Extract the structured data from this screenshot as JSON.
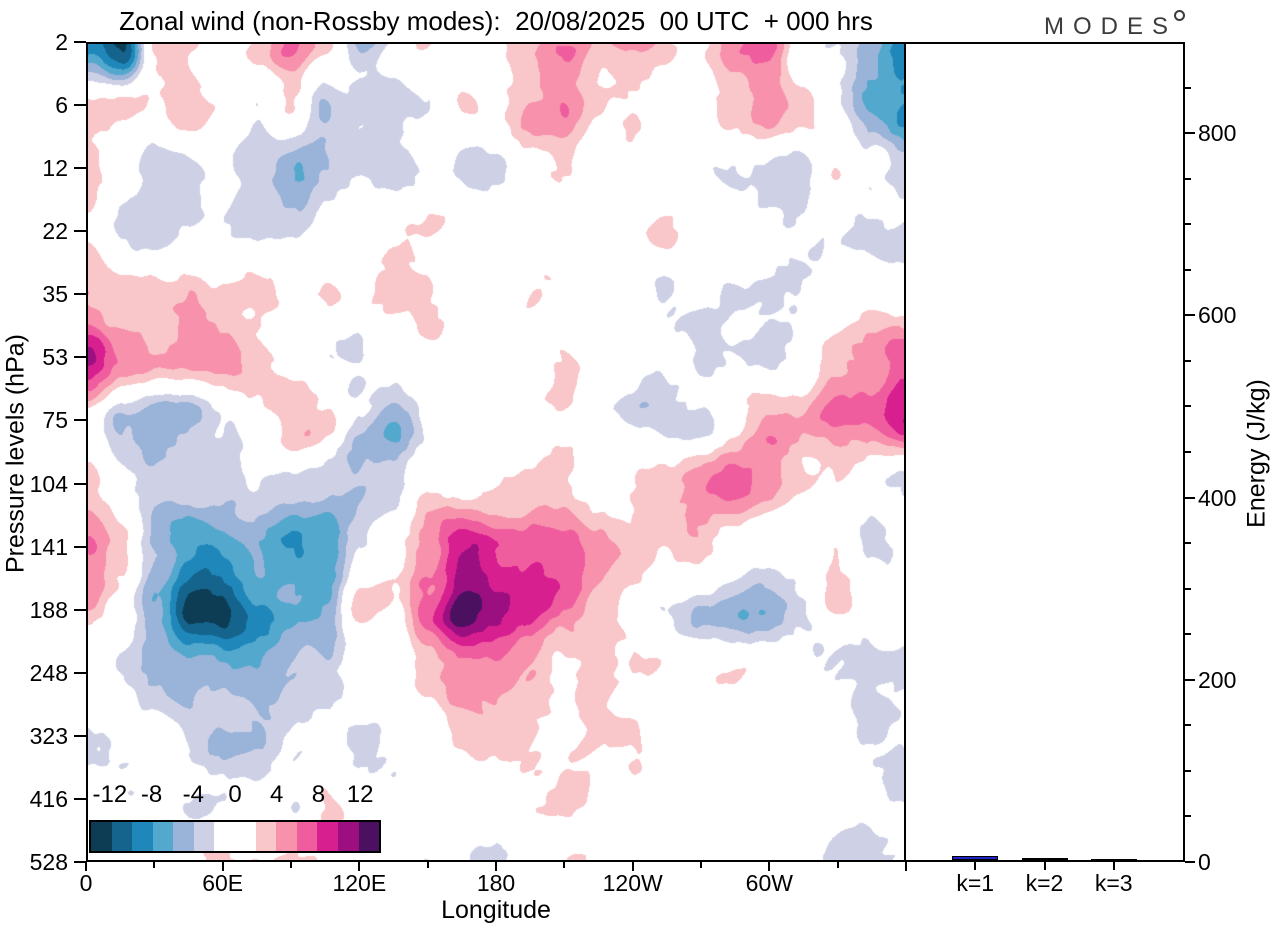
{
  "title": "Zonal wind (non-Rossby modes):  20/08/2025  00 UTC  + 000 hrs",
  "logo": {
    "text": "MODES"
  },
  "axes": {
    "y_left": {
      "label": "Pressure levels (hPa)",
      "ticks": [
        "2",
        "6",
        "12",
        "22",
        "35",
        "53",
        "75",
        "104",
        "141",
        "188",
        "248",
        "323",
        "416",
        "528"
      ]
    },
    "x_bottom": {
      "label": "Longitude",
      "major_deg": [
        0,
        60,
        120,
        180,
        240,
        300,
        360
      ],
      "major_labels": [
        "0",
        "60E",
        "120E",
        "180",
        "120W",
        "60W",
        ""
      ],
      "minor_deg": [
        30,
        90,
        150,
        210,
        270,
        330
      ]
    },
    "y_right": {
      "label": "Energy (J/kg)",
      "major_values": [
        0,
        200,
        400,
        600,
        800
      ],
      "major_labels": [
        "0",
        "200",
        "400",
        "600",
        "800"
      ],
      "minor_step": 50,
      "max": 900
    },
    "x_bars": {
      "ticks": [
        "k=1",
        "k=2",
        "k=3"
      ]
    }
  },
  "colorbar": {
    "labels": [
      "-12",
      "-8",
      "-4",
      "0",
      "4",
      "8",
      "12"
    ],
    "label_boundaries": [
      1,
      3,
      5,
      7,
      9,
      11,
      13
    ],
    "colors": [
      "#0c3d54",
      "#15648e",
      "#1f87ba",
      "#52a8cd",
      "#9ab3d8",
      "#ced1e6",
      "#ffffff",
      "#ffffff",
      "#f9c6c9",
      "#f791ac",
      "#f05d9f",
      "#d81f90",
      "#9c0f80",
      "#4c1061"
    ]
  },
  "chart_data": {
    "contour": {
      "type": "heatmap",
      "title": "Zonal wind (non-Rossby modes): 20/08/2025 00 UTC + 000 hrs",
      "xlabel": "Longitude",
      "ylabel": "Pressure levels (hPa)",
      "x_deg": [
        0,
        15,
        30,
        45,
        60,
        75,
        90,
        105,
        120,
        135,
        150,
        165,
        180,
        195,
        210,
        225,
        240,
        255,
        270,
        285,
        300,
        315,
        330,
        345,
        360
      ],
      "y_levels_hPa": [
        2,
        6,
        12,
        22,
        35,
        53,
        75,
        104,
        141,
        188,
        248,
        323,
        416,
        528
      ],
      "x_tick_labels": [
        "0",
        "60E",
        "120E",
        "180",
        "120W",
        "60W"
      ],
      "level_edges": [
        -14,
        -12,
        -10,
        -8,
        -6,
        -4,
        -2,
        0,
        2,
        4,
        6,
        8,
        10,
        12,
        14
      ],
      "palette": [
        "#0c3d54",
        "#15648e",
        "#1f87ba",
        "#52a8cd",
        "#9ab3d8",
        "#ced1e6",
        "#ffffff",
        "#ffffff",
        "#f9c6c9",
        "#f791ac",
        "#f05d9f",
        "#d81f90",
        "#9c0f80",
        "#4c1061"
      ],
      "values_by_level": [
        [
          -10,
          -13,
          2,
          2,
          0,
          2,
          5,
          3,
          -4,
          -2,
          3,
          -1,
          2,
          4,
          5,
          2,
          4,
          3,
          0,
          5,
          6,
          0,
          -2,
          -5,
          -8
        ],
        [
          2,
          3,
          1,
          4,
          2,
          -2,
          2,
          -5,
          -3,
          -4,
          -2,
          1,
          0,
          3,
          6,
          2,
          2,
          1,
          0,
          3,
          6,
          2,
          -2,
          -6,
          -9
        ],
        [
          3,
          0,
          -2,
          -2,
          -2,
          -3,
          -5,
          -3,
          -2,
          -3,
          -2,
          -2,
          -1,
          1,
          2,
          0,
          1,
          0,
          -1,
          -2,
          -2,
          -2,
          2,
          -2,
          -3
        ],
        [
          2,
          -2,
          -3,
          -2,
          -1,
          -2,
          -2,
          -1,
          0,
          2,
          2,
          0,
          1,
          0,
          1,
          1,
          0,
          2,
          1,
          0,
          -1,
          -2,
          -1,
          -3,
          -2
        ],
        [
          3,
          4,
          3,
          4,
          3,
          2,
          1,
          2,
          1,
          1,
          2,
          1,
          0,
          1,
          0,
          0,
          0,
          -1,
          -2,
          -3,
          -2,
          -3,
          -2,
          0,
          0
        ],
        [
          10,
          5,
          5,
          6,
          4,
          2,
          1,
          -1,
          -2,
          0,
          1,
          2,
          1,
          1,
          2,
          1,
          0,
          -2,
          -3,
          -2,
          -2,
          1,
          4,
          5,
          8
        ],
        [
          1,
          -4,
          -6,
          -5,
          -2,
          1,
          5,
          3,
          -3,
          -5,
          -2,
          0,
          0,
          1,
          2,
          0,
          -2,
          -4,
          -2,
          2,
          5,
          4,
          7,
          6,
          9
        ],
        [
          2,
          0,
          -2,
          -3,
          -3,
          -2,
          -3,
          -2,
          -4,
          -4,
          1,
          2,
          2,
          2,
          2,
          1,
          2,
          3,
          5,
          6,
          5,
          2,
          1,
          -2,
          -2
        ],
        [
          6,
          1,
          -5,
          -8,
          -8,
          -6,
          -9,
          -8,
          -2,
          2,
          6,
          10,
          8,
          8,
          7,
          4,
          3,
          2,
          3,
          0,
          -2,
          0,
          2,
          -1,
          0
        ],
        [
          4,
          0,
          -6,
          -12,
          -13,
          -9,
          -6,
          -6,
          2,
          1,
          7,
          12.5,
          11,
          9,
          6,
          3,
          2,
          -2,
          -4,
          -5,
          -5,
          -2,
          2,
          0,
          0
        ],
        [
          0,
          -2,
          -4,
          -6,
          -6,
          -5,
          -4,
          -2,
          1,
          0,
          3,
          6,
          6,
          5,
          2,
          3,
          2,
          0,
          1,
          2,
          0,
          0,
          -1,
          -2,
          -3
        ],
        [
          -2,
          -2,
          -2,
          -3,
          -4,
          -4,
          -3,
          -2,
          -2,
          -1,
          1,
          3,
          3,
          2,
          1,
          1,
          1,
          0,
          0,
          1,
          0,
          0,
          0,
          -2,
          -1
        ],
        [
          -1,
          -2,
          -1,
          -1,
          -2,
          -2,
          -2,
          2,
          -1,
          -2,
          0,
          -1,
          -1,
          1,
          2,
          1,
          0,
          0,
          0,
          0,
          0,
          0,
          0,
          -1,
          -2
        ],
        [
          0,
          0,
          0,
          1,
          2,
          2,
          2,
          2,
          2,
          1,
          -1,
          -2,
          -2,
          1,
          2,
          1,
          0,
          0,
          0,
          0,
          0,
          0,
          -1,
          -2,
          -2
        ]
      ]
    },
    "energy_bars": {
      "type": "bar",
      "categories": [
        "k=1",
        "k=2",
        "k=3"
      ],
      "values": [
        4,
        2,
        1.5
      ],
      "ylabel": "Energy (J/kg)",
      "ylim": [
        0,
        900
      ],
      "y_ticks": [
        0,
        200,
        400,
        600,
        800
      ],
      "bar_colors": [
        "#2323cc",
        "#15153a",
        "#15153a"
      ]
    }
  }
}
